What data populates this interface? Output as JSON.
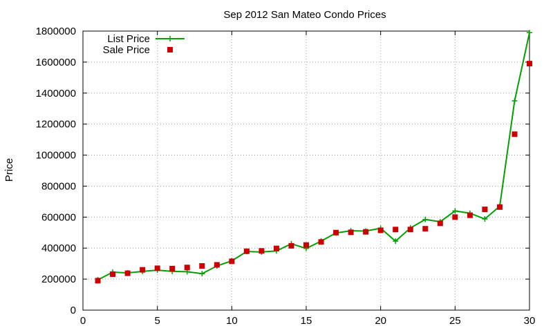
{
  "chart_data": {
    "type": "line",
    "title": "Sep 2012 San Mateo Condo Prices",
    "xlabel": "",
    "ylabel": "Price",
    "xlim": [
      0,
      30
    ],
    "ylim": [
      0,
      1800000
    ],
    "xticks": [
      0,
      5,
      10,
      15,
      20,
      25,
      30
    ],
    "xtick_labels": [
      "0",
      "5",
      "10",
      "15",
      "20",
      "25",
      "30"
    ],
    "yticks": [
      0,
      200000,
      400000,
      600000,
      800000,
      1000000,
      1200000,
      1400000,
      1600000,
      1800000
    ],
    "ytick_labels": [
      "0",
      "200000",
      "400000",
      "600000",
      "800000",
      "1000000",
      "1200000",
      "1400000",
      "1600000",
      "1800000"
    ],
    "grid": true,
    "legend_position": "top-left",
    "x": [
      1,
      2,
      3,
      4,
      5,
      6,
      7,
      8,
      9,
      10,
      11,
      12,
      13,
      14,
      15,
      16,
      17,
      18,
      19,
      20,
      21,
      22,
      23,
      24,
      25,
      26,
      27,
      28,
      29,
      30
    ],
    "series": [
      {
        "name": "List Price",
        "style": "line-points",
        "color": "#00a000",
        "marker": "plus",
        "values": [
          195000,
          245000,
          240000,
          250000,
          258000,
          250000,
          248000,
          235000,
          285000,
          318000,
          378000,
          375000,
          382000,
          428000,
          398000,
          445000,
          498000,
          512000,
          510000,
          528000,
          445000,
          530000,
          585000,
          570000,
          640000,
          625000,
          588000,
          670000,
          1350000,
          1790000
        ]
      },
      {
        "name": "Sale Price",
        "style": "points",
        "color": "#cc0000",
        "marker": "square",
        "values": [
          190000,
          232000,
          238000,
          260000,
          270000,
          268000,
          275000,
          285000,
          292000,
          315000,
          380000,
          382000,
          398000,
          415000,
          420000,
          440000,
          500000,
          502000,
          505000,
          515000,
          520000,
          520000,
          525000,
          560000,
          600000,
          612000,
          650000,
          665000,
          1135000,
          1590000
        ]
      }
    ]
  }
}
